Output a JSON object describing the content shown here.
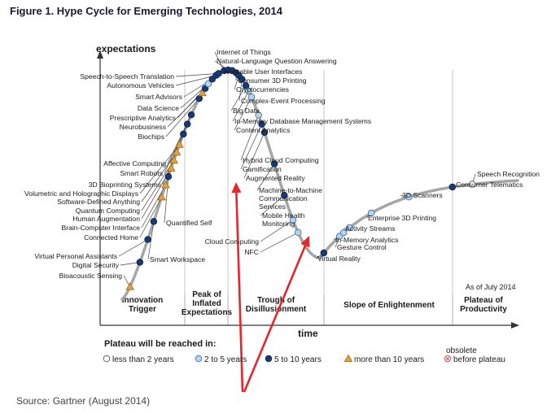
{
  "figure_title": "Figure 1. Hype Cycle for Emerging Technologies, 2014",
  "source": "Source: Gartner (August 2014)",
  "colors": {
    "curve": "#a6a6a6",
    "blue_dark": "#1b3a74",
    "blue_light": "#b9d3ec",
    "orange": "#e6a23a",
    "grid": "#c9c9c9",
    "arrow": "#e8252b",
    "text": "#1a1a1a"
  },
  "chart_data": {
    "type": "scatter",
    "title": "",
    "xlabel": "time",
    "ylabel": "expectations",
    "as_of": "As of July 2014",
    "phases": [
      {
        "label_lines": [
          "Innovation",
          "Trigger"
        ]
      },
      {
        "label_lines": [
          "Peak of",
          "Inflated",
          "Expectations"
        ]
      },
      {
        "label_lines": [
          "Trough of",
          "Disillusionment"
        ]
      },
      {
        "label_lines": [
          "Slope of Enlightenment"
        ]
      },
      {
        "label_lines": [
          "Plateau of",
          "Productivity"
        ]
      }
    ],
    "legend": {
      "title": "Plateau will be reached in:",
      "items": [
        {
          "marker": "open",
          "label": "less than 2 years"
        },
        {
          "marker": "light",
          "label": "2 to 5 years"
        },
        {
          "marker": "dark",
          "label": "5 to 10 years"
        },
        {
          "marker": "triangle",
          "label": "more than 10 years"
        },
        {
          "marker": "obsolete",
          "label": "obsolete",
          "label2": "before plateau"
        }
      ]
    },
    "technologies": [
      {
        "name": "Bioacoustic Sensing",
        "t": 0.02,
        "marker": "triangle"
      },
      {
        "name": "Digital Security",
        "t": 0.045,
        "marker": "dark"
      },
      {
        "name": "Virtual Personal Assistants",
        "t": 0.065,
        "marker": "dark"
      },
      {
        "name": "Smart Workspace",
        "t": 0.08,
        "marker": "dark"
      },
      {
        "name": "Connected Home",
        "t": 0.1,
        "marker": "triangle"
      },
      {
        "name": "Brain-Computer Interface",
        "t": 0.11,
        "marker": "triangle"
      },
      {
        "name": "Quantified Self",
        "t": 0.117,
        "marker": "dark"
      },
      {
        "name": "Human Augmentation",
        "t": 0.124,
        "marker": "triangle"
      },
      {
        "name": "Quantum Computing",
        "t": 0.131,
        "marker": "triangle"
      },
      {
        "name": "Software-Defined Anything",
        "t": 0.138,
        "marker": "triangle"
      },
      {
        "name": "Volumetric and Holographic Displays",
        "t": 0.145,
        "marker": "triangle"
      },
      {
        "name": "3D Bioprinting Systems",
        "t": 0.155,
        "marker": "dark"
      },
      {
        "name": "Smart Robots",
        "t": 0.165,
        "marker": "dark"
      },
      {
        "name": "Affective Computing",
        "t": 0.175,
        "marker": "dark"
      },
      {
        "name": "Biochips",
        "t": 0.195,
        "marker": "dark"
      },
      {
        "name": "Neurobusiness",
        "t": 0.203,
        "marker": "triangle"
      },
      {
        "name": "Prescriptive Analytics",
        "t": 0.21,
        "marker": "dark"
      },
      {
        "name": "Data Science",
        "t": 0.218,
        "marker": "light"
      },
      {
        "name": "Smart Advisors",
        "t": 0.228,
        "marker": "dark"
      },
      {
        "name": "Autonomous Vehicles",
        "t": 0.238,
        "marker": "dark"
      },
      {
        "name": "Speech-to-Speech Translation",
        "t": 0.244,
        "marker": "dark"
      },
      {
        "name": "Internet of Things",
        "t": 0.258,
        "marker": "dark"
      },
      {
        "name": "Natural-Language Question Answering",
        "t": 0.268,
        "marker": "dark"
      },
      {
        "name": "Wearable User Interfaces",
        "t": 0.278,
        "marker": "dark"
      },
      {
        "name": "Consumer 3D Printing",
        "t": 0.288,
        "marker": "dark"
      },
      {
        "name": "Cryptocurrencies",
        "t": 0.295,
        "marker": "dark"
      },
      {
        "name": "Complex-Event Processing",
        "t": 0.303,
        "marker": "dark"
      },
      {
        "name": "Big Data",
        "t": 0.313,
        "marker": "dark"
      },
      {
        "name": "In-Memory Database Management Systems",
        "t": 0.32,
        "marker": "light"
      },
      {
        "name": "Content Analytics",
        "t": 0.327,
        "marker": "light"
      },
      {
        "name": "Hybrid Cloud Computing",
        "t": 0.345,
        "marker": "light"
      },
      {
        "name": "Gamification",
        "t": 0.353,
        "marker": "dark"
      },
      {
        "name": "Augmented Reality",
        "t": 0.36,
        "marker": "dark"
      },
      {
        "name": "Machine-to-Machine Communication Services",
        "t": 0.385,
        "marker": "dark"
      },
      {
        "name": "Mobile Health Monitoring",
        "t": 0.41,
        "marker": "dark"
      },
      {
        "name": "Cloud Computing",
        "t": 0.432,
        "marker": "light"
      },
      {
        "name": "NFC",
        "t": 0.445,
        "marker": "light"
      },
      {
        "name": "Virtual Reality",
        "t": 0.51,
        "marker": "dark"
      },
      {
        "name": "Gesture Control",
        "t": 0.55,
        "marker": "light"
      },
      {
        "name": "In-Memory Analytics",
        "t": 0.56,
        "marker": "light"
      },
      {
        "name": "Activity Streams",
        "t": 0.575,
        "marker": "light"
      },
      {
        "name": "Enterprise 3D Printing",
        "t": 0.63,
        "marker": "light"
      },
      {
        "name": "3D Scanners",
        "t": 0.725,
        "marker": "light"
      },
      {
        "name": "Consumer Telematics",
        "t": 0.835,
        "marker": "dark"
      },
      {
        "name": "Speech Recognition",
        "t": 0.885,
        "marker": "open"
      }
    ]
  }
}
